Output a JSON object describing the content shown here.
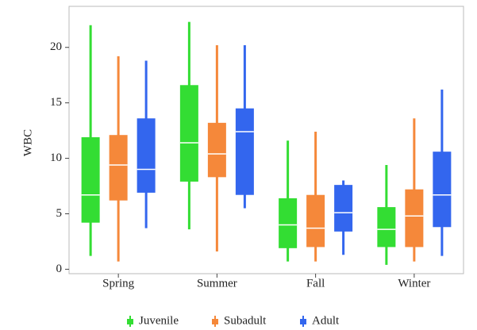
{
  "chart_data": {
    "type": "box",
    "ylabel": "WBC",
    "categories": [
      "Spring",
      "Summer",
      "Fall",
      "Winter"
    ],
    "ylim": [
      -0.4,
      23.7
    ],
    "yticks": [
      0,
      5,
      10,
      15,
      20
    ],
    "legend": "bottom",
    "series": [
      {
        "name": "Juvenile",
        "color": "#33dd33",
        "whisker_low": [
          1.2,
          3.6,
          0.7,
          0.4
        ],
        "q1": [
          4.2,
          7.9,
          1.9,
          2.0
        ],
        "median": [
          6.7,
          11.4,
          4.0,
          3.6
        ],
        "q3": [
          11.9,
          16.6,
          6.4,
          5.6
        ],
        "whisker_high": [
          22.0,
          22.3,
          11.6,
          9.4
        ]
      },
      {
        "name": "Subadult",
        "color": "#f5883a",
        "whisker_low": [
          0.7,
          1.6,
          0.7,
          0.7
        ],
        "q1": [
          6.2,
          8.3,
          2.0,
          2.0
        ],
        "median": [
          9.4,
          10.4,
          3.7,
          4.8
        ],
        "q3": [
          12.1,
          13.2,
          6.7,
          7.2
        ],
        "whisker_high": [
          19.2,
          20.2,
          12.4,
          13.6
        ]
      },
      {
        "name": "Adult",
        "color": "#3366ee",
        "whisker_low": [
          3.7,
          5.5,
          1.3,
          1.2
        ],
        "q1": [
          6.9,
          6.7,
          3.4,
          3.8
        ],
        "median": [
          9.0,
          12.4,
          5.1,
          6.7
        ],
        "q3": [
          13.6,
          14.5,
          7.6,
          10.6
        ],
        "whisker_high": [
          18.8,
          20.2,
          8.0,
          16.2
        ]
      }
    ]
  }
}
